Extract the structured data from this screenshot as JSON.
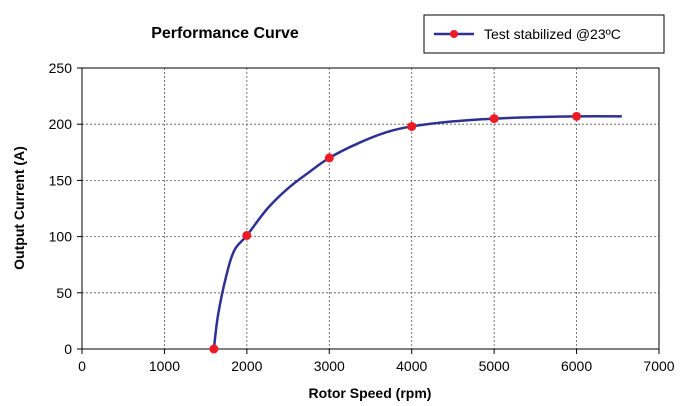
{
  "chart_data": {
    "type": "line",
    "title": "Performance Curve",
    "xlabel": "Rotor Speed (rpm)",
    "ylabel": "Output Current (A)",
    "xlim": [
      0,
      7000
    ],
    "ylim": [
      0,
      250
    ],
    "x_ticks": [
      0,
      1000,
      2000,
      3000,
      4000,
      5000,
      6000,
      7000
    ],
    "y_ticks": [
      0,
      50,
      100,
      150,
      200,
      250
    ],
    "x_tick_labels": [
      "0",
      "1000",
      "2000",
      "3000",
      "4000",
      "5000",
      "6000",
      "7000"
    ],
    "y_tick_labels": [
      "0",
      "50",
      "100",
      "150",
      "200",
      "250"
    ],
    "grid": true,
    "legend_position": "top-right",
    "series": [
      {
        "name": "Test stabilized @23ºC",
        "line_color": "#2E3192",
        "marker_color": "#ED1C24",
        "markers": [
          {
            "x": 1600,
            "y": 0
          },
          {
            "x": 2000,
            "y": 101
          },
          {
            "x": 3000,
            "y": 170
          },
          {
            "x": 4000,
            "y": 198
          },
          {
            "x": 5000,
            "y": 205
          },
          {
            "x": 6000,
            "y": 207
          }
        ],
        "curve": [
          {
            "x": 1600,
            "y": 0
          },
          {
            "x": 1650,
            "y": 30
          },
          {
            "x": 1750,
            "y": 65
          },
          {
            "x": 1850,
            "y": 88
          },
          {
            "x": 2000,
            "y": 101
          },
          {
            "x": 2250,
            "y": 125
          },
          {
            "x": 2500,
            "y": 143
          },
          {
            "x": 2750,
            "y": 157
          },
          {
            "x": 3000,
            "y": 170
          },
          {
            "x": 3350,
            "y": 183
          },
          {
            "x": 3700,
            "y": 193
          },
          {
            "x": 4000,
            "y": 198
          },
          {
            "x": 4500,
            "y": 202.5
          },
          {
            "x": 5000,
            "y": 205
          },
          {
            "x": 5500,
            "y": 206.3
          },
          {
            "x": 6000,
            "y": 207
          },
          {
            "x": 6550,
            "y": 207
          }
        ]
      }
    ]
  }
}
